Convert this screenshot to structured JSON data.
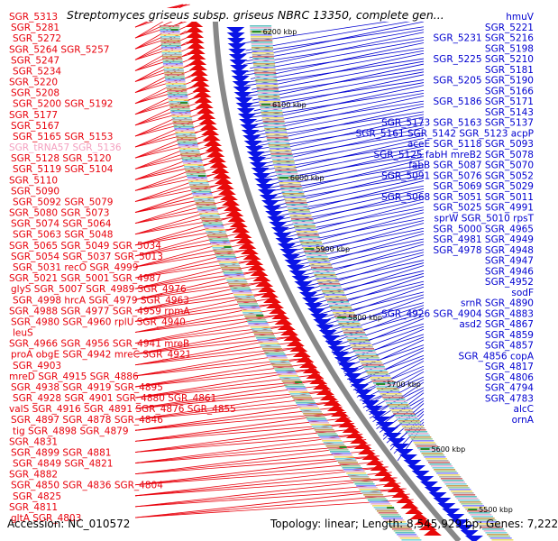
{
  "title": "Streptomyces griseus subsp. griseus NBRC 13350, complete gen...",
  "accession": "Accession: NC_010572",
  "summary": "Topology: linear; Length: 8,545,929 bp; Genes: 7,222",
  "colors": {
    "left_labels": "#e8000b",
    "right_labels": "#0000d0",
    "trna_label": "#f4a0c0",
    "forward_strand": "#0a14e6",
    "reverse_strand": "#e80a0a",
    "axis": "#888888",
    "tick": "#2a8a2a"
  },
  "ticks": [
    {
      "label": "6200 kbp"
    },
    {
      "label": "6100 kbp"
    },
    {
      "label": "6000 kbp"
    },
    {
      "label": "5900 kbp"
    },
    {
      "label": "5800 kbp"
    },
    {
      "label": "5700 kbp"
    },
    {
      "label": "5600 kbp"
    },
    {
      "label": "5500 kbp"
    }
  ],
  "left_labels": [
    "SGR_5313",
    "SGR_5281",
    "SGR_5272",
    "SGR_5264 SGR_5257",
    "SGR_5247",
    "SGR_5234",
    "SGR_5220",
    "SGR_5208",
    "SGR_5200 SGR_5192",
    "SGR_5177",
    "SGR_5167",
    "SGR_5165 SGR_5153",
    "SGR_tRNA57 SGR_5136",
    "SGR_5128 SGR_5120",
    "SGR_5119 SGR_5104",
    "SGR_5110",
    "SGR_5090",
    "SGR_5092 SGR_5079",
    "SGR_5080 SGR_5073",
    "SGR_5074 SGR_5064",
    "SGR_5063 SGR_5048",
    "SGR_5065 SGR_5049 SGR_5034",
    "SGR_5054 SGR_5037 SGR_5013",
    "SGR_5031 recO SGR_4999",
    "SGR_5021 SGR_5001 SGR_4987",
    "glyS SGR_5007 SGR_4989 SGR_4976",
    "SGR_4998 hrcA SGR_4979 SGR_4963",
    "SGR_4988 SGR_4977 SGR_4959 rpmA",
    "SGR_4980 SGR_4960 rplU SGR_4940",
    "leuS",
    "SGR_4966 SGR_4956 SGR_4941 mreB",
    "proA obgE SGR_4942 mreC SGR_4921",
    "SGR_4903",
    "mreD SGR_4915 SGR_4886",
    "SGR_4938 SGR_4919 SGR_4895",
    "SGR_4928 SGR_4901 SGR_4880 SGR_4861",
    "valS SGR_4916 SGR_4891 SGR_4876 SGR_4855",
    "SGR_4897 SGR_4878 SGR_4846",
    "tig SGR_4898 SGR_4879",
    "SGR_4831",
    "SGR_4899 SGR_4881",
    "SGR_4849 SGR_4821",
    "SGR_4882",
    "SGR_4850 SGR_4836 SGR_4804",
    "SGR_4825",
    "SGR_4811",
    "gltA SGR_4803"
  ],
  "right_labels": [
    "hmuV",
    "SGR_5221",
    "SGR_5231 SGR_5216",
    "SGR_5198",
    "SGR_5225 SGR_5210",
    "SGR_5181",
    "SGR_5205 SGR_5190",
    "SGR_5166",
    "SGR_5186 SGR_5171",
    "SGR_5143",
    "SGR_5173 SGR_5163 SGR_5137",
    "SGR_5161 SGR_5142 SGR_5123 acpP",
    "aceE SGR_5118 SGR_5093",
    "SGR_5125 fabH mreB2 SGR_5078",
    "fabB SGR_5087 SGR_5070",
    "SGR_5091 SGR_5076 SGR_5052",
    "SGR_5069 SGR_5029",
    "SGR_5068 SGR_5051 SGR_5011",
    "SGR_5025 SGR_4991",
    "sprW SGR_5010 rpsT",
    "SGR_5000 SGR_4965",
    "SGR_4981 SGR_4949",
    "SGR_4978 SGR_4948",
    "SGR_4947",
    "SGR_4946",
    "SGR_4952",
    "sodF",
    "srnR SGR_4890",
    "SGR_4926 SGR_4904 SGR_4883",
    "asd2 SGR_4867",
    "SGR_4859",
    "SGR_4857",
    "SGR_4856 copA",
    "SGR_4817",
    "SGR_4806",
    "SGR_4794",
    "SGR_4783",
    "alcC",
    "ornA"
  ]
}
